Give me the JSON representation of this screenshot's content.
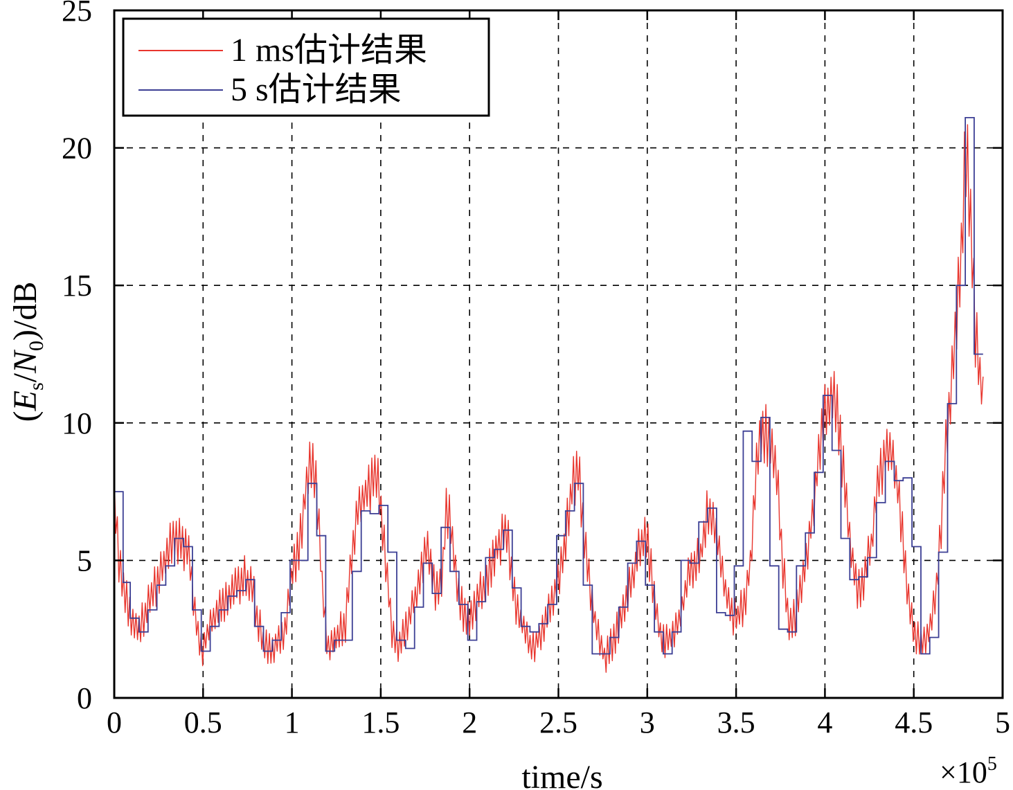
{
  "chart_data": {
    "type": "line",
    "xlabel": "time/s",
    "ylabel": "(Es/N0)/dB",
    "ylabel_parts": {
      "open": "(",
      "E": "E",
      "s": "s",
      "slash": "/",
      "N": "N",
      "zero": "0",
      "close": ")/dB"
    },
    "x_multiplier": {
      "times": "×10",
      "exp": "5"
    },
    "xlim": [
      0,
      5
    ],
    "ylim": [
      0,
      25
    ],
    "x_ticks": [
      0,
      0.5,
      1,
      1.5,
      2,
      2.5,
      3,
      3.5,
      4,
      4.5,
      5
    ],
    "x_tick_labels": [
      "0",
      "0.5",
      "1",
      "1.5",
      "2",
      "2.5",
      "3",
      "3.5",
      "4",
      "4.5",
      "5"
    ],
    "y_ticks": [
      0,
      5,
      10,
      15,
      20,
      25
    ],
    "y_tick_labels": [
      "0",
      "5",
      "10",
      "15",
      "20",
      "25"
    ],
    "grid": true,
    "legend_position": "top-left",
    "series": [
      {
        "name": "1 ms估计结果",
        "color": "#e8352d",
        "style": "dense-noisy",
        "x": [
          0,
          0.03,
          0.07,
          0.1,
          0.13,
          0.16,
          0.2,
          0.25,
          0.3,
          0.35,
          0.38,
          0.42,
          0.45,
          0.48,
          0.5,
          0.54,
          0.58,
          0.62,
          0.66,
          0.7,
          0.74,
          0.78,
          0.8,
          0.84,
          0.88,
          0.92,
          0.96,
          1.0,
          1.03,
          1.06,
          1.09,
          1.11,
          1.14,
          1.17,
          1.2,
          1.23,
          1.27,
          1.3,
          1.33,
          1.36,
          1.4,
          1.44,
          1.47,
          1.5,
          1.53,
          1.56,
          1.6,
          1.64,
          1.68,
          1.72,
          1.76,
          1.8,
          1.84,
          1.87,
          1.9,
          1.94,
          1.98,
          2.02,
          2.06,
          2.1,
          2.14,
          2.18,
          2.21,
          2.24,
          2.27,
          2.31,
          2.35,
          2.39,
          2.43,
          2.47,
          2.51,
          2.55,
          2.58,
          2.61,
          2.64,
          2.68,
          2.72,
          2.76,
          2.8,
          2.84,
          2.88,
          2.92,
          2.96,
          3.0,
          3.03,
          3.06,
          3.1,
          3.14,
          3.18,
          3.22,
          3.26,
          3.3,
          3.34,
          3.38,
          3.42,
          3.46,
          3.5,
          3.54,
          3.58,
          3.62,
          3.66,
          3.7,
          3.73,
          3.76,
          3.8,
          3.84,
          3.88,
          3.92,
          3.96,
          4.0,
          4.04,
          4.07,
          4.1,
          4.14,
          4.18,
          4.22,
          4.26,
          4.3,
          4.34,
          4.38,
          4.42,
          4.46,
          4.5,
          4.54,
          4.58,
          4.62,
          4.65,
          4.68,
          4.71,
          4.74,
          4.77,
          4.79,
          4.81,
          4.83,
          4.85,
          4.87,
          4.89
        ],
        "y": [
          7.3,
          4.8,
          3.6,
          2.6,
          2.5,
          2.8,
          3.6,
          4.3,
          5.3,
          5.8,
          5.6,
          5.2,
          3.2,
          2.0,
          1.8,
          2.6,
          3.1,
          3.5,
          3.9,
          4.2,
          4.4,
          4.0,
          3.0,
          2.0,
          1.8,
          2.1,
          2.5,
          4.6,
          5.2,
          6.5,
          8.2,
          8.6,
          7.6,
          4.0,
          1.8,
          2.1,
          2.4,
          2.6,
          4.8,
          6.5,
          7.3,
          7.6,
          8.3,
          7.0,
          5.0,
          2.6,
          1.9,
          2.5,
          3.3,
          4.3,
          5.6,
          4.0,
          3.9,
          7.1,
          5.8,
          3.8,
          2.8,
          3.2,
          3.8,
          4.4,
          5.3,
          5.8,
          6.2,
          4.1,
          3.1,
          2.5,
          1.8,
          2.2,
          2.8,
          3.6,
          4.5,
          6.4,
          7.8,
          8.4,
          6.2,
          3.9,
          2.3,
          1.5,
          1.9,
          2.6,
          3.4,
          4.6,
          5.4,
          5.8,
          4.2,
          2.6,
          2.1,
          2.2,
          2.8,
          4.1,
          4.9,
          5.2,
          6.8,
          6.5,
          4.7,
          3.2,
          2.9,
          3.3,
          4.8,
          9.0,
          9.7,
          9.3,
          8.1,
          5.0,
          2.5,
          3.1,
          4.6,
          6.2,
          8.4,
          10.2,
          11.1,
          10.3,
          8.5,
          5.6,
          3.8,
          4.3,
          5.5,
          8.0,
          8.7,
          8.8,
          7.2,
          4.3,
          2.4,
          1.9,
          2.2,
          3.5,
          5.8,
          9.5,
          11.2,
          13.5,
          16.6,
          20.4,
          18.7,
          15.4,
          13.1,
          11.8,
          11.0
        ]
      },
      {
        "name": "5 s估计结果",
        "color": "#3b3e94",
        "style": "step",
        "x": [
          0,
          0.05,
          0.09,
          0.14,
          0.19,
          0.24,
          0.29,
          0.34,
          0.39,
          0.44,
          0.49,
          0.54,
          0.59,
          0.64,
          0.69,
          0.74,
          0.79,
          0.84,
          0.89,
          0.94,
          0.99,
          1.04,
          1.09,
          1.14,
          1.19,
          1.24,
          1.29,
          1.34,
          1.39,
          1.44,
          1.49,
          1.54,
          1.59,
          1.64,
          1.69,
          1.74,
          1.79,
          1.84,
          1.89,
          1.94,
          1.99,
          2.04,
          2.09,
          2.14,
          2.19,
          2.24,
          2.29,
          2.34,
          2.39,
          2.44,
          2.49,
          2.54,
          2.59,
          2.64,
          2.69,
          2.74,
          2.79,
          2.84,
          2.89,
          2.94,
          2.99,
          3.04,
          3.09,
          3.14,
          3.19,
          3.24,
          3.29,
          3.34,
          3.39,
          3.44,
          3.49,
          3.54,
          3.59,
          3.64,
          3.69,
          3.74,
          3.79,
          3.84,
          3.89,
          3.94,
          3.99,
          4.04,
          4.09,
          4.14,
          4.19,
          4.24,
          4.29,
          4.34,
          4.39,
          4.44,
          4.49,
          4.54,
          4.59,
          4.64,
          4.69,
          4.74,
          4.79,
          4.84,
          4.89
        ],
        "y": [
          7.5,
          4.2,
          2.9,
          2.4,
          3.2,
          4.1,
          4.8,
          5.8,
          5.5,
          3.2,
          1.7,
          2.6,
          3.2,
          3.7,
          3.9,
          4.3,
          2.6,
          1.7,
          2.1,
          3.1,
          5.0,
          5.0,
          7.8,
          5.9,
          1.7,
          2.1,
          2.1,
          4.6,
          6.8,
          6.7,
          7.0,
          5.3,
          2.1,
          1.8,
          3.3,
          4.9,
          3.8,
          6.2,
          4.6,
          3.4,
          2.1,
          3.5,
          5.1,
          5.4,
          6.1,
          4.0,
          2.6,
          2.4,
          2.7,
          3.4,
          5.9,
          6.8,
          7.8,
          4.1,
          1.6,
          1.6,
          2.2,
          3.3,
          4.9,
          5.7,
          4.1,
          2.4,
          1.6,
          2.4,
          5.0,
          4.9,
          6.4,
          6.9,
          3.1,
          3.0,
          4.8,
          9.7,
          8.6,
          10.2,
          4.8,
          2.5,
          2.4,
          4.8,
          6.0,
          8.2,
          11.0,
          9.0,
          5.8,
          4.3,
          4.4,
          5.1,
          7.1,
          8.6,
          7.9,
          8.0,
          5.5,
          1.6,
          2.2,
          5.3,
          10.7,
          15.0,
          21.1,
          12.5,
          12.5
        ]
      }
    ]
  }
}
